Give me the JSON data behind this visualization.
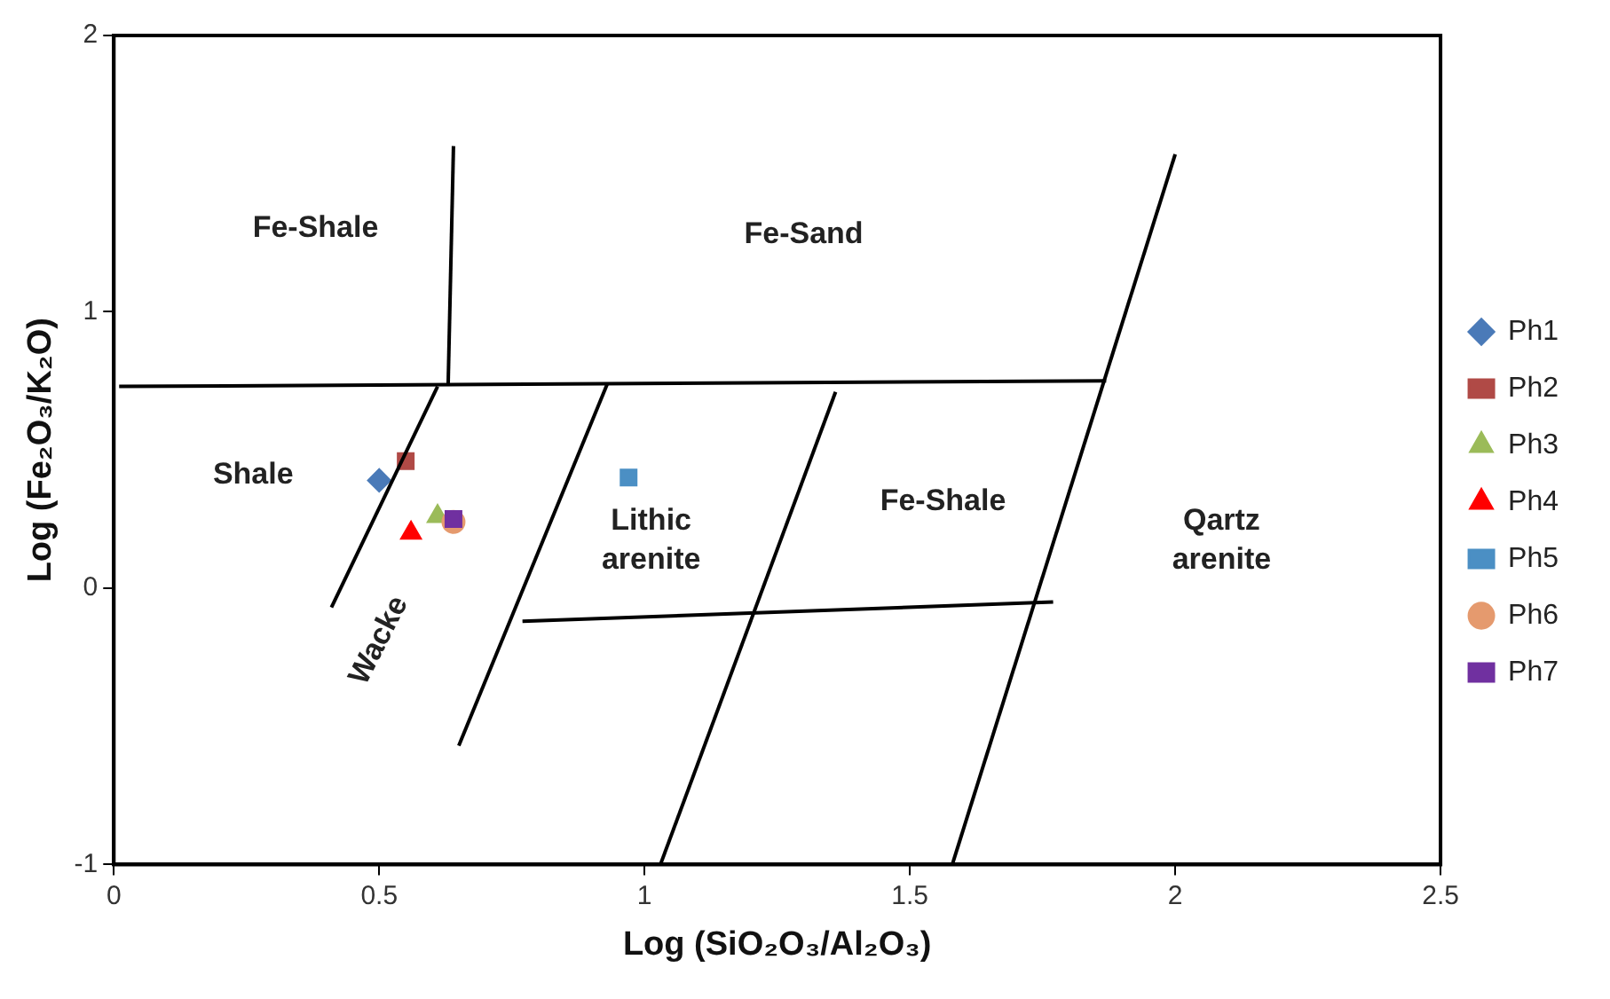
{
  "chart_data": {
    "type": "scatter",
    "xlabel": "Log (SiO₂O₃/Al₂O₃)",
    "ylabel": "Log (Fe₂O₃/K₂O)",
    "xlim": [
      0,
      2.5
    ],
    "xticks": [
      0,
      0.5,
      1,
      1.5,
      2,
      2.5
    ],
    "ylim": [
      -1,
      2
    ],
    "yticks": [
      -1,
      0,
      1,
      2
    ],
    "grid": false,
    "legend": "right",
    "series": [
      {
        "name": "Ph1",
        "color": "#4a7ab8",
        "marker": "diamond",
        "x": [
          0.5
        ],
        "values": [
          0.39
        ]
      },
      {
        "name": "Ph2",
        "color": "#b04a46",
        "marker": "square",
        "x": [
          0.55
        ],
        "values": [
          0.46
        ]
      },
      {
        "name": "Ph3",
        "color": "#9bbb59",
        "marker": "triangle",
        "x": [
          0.61
        ],
        "values": [
          0.26
        ]
      },
      {
        "name": "Ph4",
        "color": "#ff0000",
        "marker": "triangle",
        "x": [
          0.56
        ],
        "values": [
          0.2
        ]
      },
      {
        "name": "Ph5",
        "color": "#4b8fc4",
        "marker": "square",
        "x": [
          0.97
        ],
        "values": [
          0.4
        ]
      },
      {
        "name": "Ph6",
        "color": "#e59a6e",
        "marker": "circle",
        "x": [
          0.64
        ],
        "values": [
          0.24
        ]
      },
      {
        "name": "Ph7",
        "color": "#7030a0",
        "marker": "square",
        "x": [
          0.64
        ],
        "values": [
          0.25
        ]
      },
      {
        "type": "line",
        "color": "#000000",
        "marker": "none",
        "x": [
          0.64,
          0.63
        ],
        "values": [
          1.6,
          0.74
        ]
      },
      {
        "type": "line",
        "color": "#000000",
        "marker": "none",
        "x": [
          0.01,
          1.87
        ],
        "values": [
          0.73,
          0.75
        ]
      },
      {
        "type": "line",
        "color": "#000000",
        "marker": "none",
        "x": [
          0.61,
          0.41
        ],
        "values": [
          0.73,
          -0.07
        ]
      },
      {
        "type": "line",
        "color": "#000000",
        "marker": "none",
        "x": [
          0.93,
          0.65
        ],
        "values": [
          0.74,
          -0.57
        ]
      },
      {
        "type": "line",
        "color": "#000000",
        "marker": "none",
        "x": [
          1.36,
          1.03
        ],
        "values": [
          0.71,
          -1
        ]
      },
      {
        "type": "line",
        "color": "#000000",
        "marker": "none",
        "x": [
          2,
          1.58
        ],
        "values": [
          1.57,
          -1
        ]
      },
      {
        "type": "line",
        "color": "#000000",
        "marker": "none",
        "x": [
          0.77,
          1.77
        ],
        "values": [
          -0.12,
          -0.05
        ]
      }
    ],
    "annotations": [
      "Fe-Shale",
      "Fe-Sand",
      "Shale",
      "Lithic\narenite",
      "Fe-Shale",
      "Qartz\narenite",
      "Wacke"
    ]
  }
}
